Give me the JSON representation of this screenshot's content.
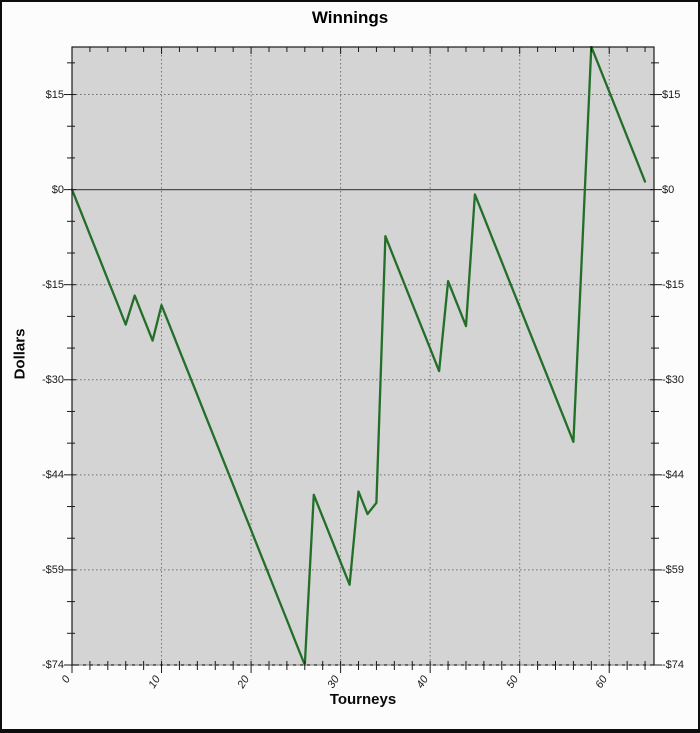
{
  "chart_data": {
    "type": "line",
    "title": "Winnings",
    "xlabel": "Tourneys",
    "ylabel": "Dollars",
    "legend": "none",
    "grid": {
      "vertical_at": [
        10,
        20,
        30,
        40,
        50,
        60
      ],
      "horizontal_at": [
        14.8,
        -14.8,
        -29.6,
        -44.4,
        -59.2,
        -74
      ],
      "zero_line": true
    },
    "xlim": [
      0,
      65
    ],
    "ylim": [
      -74,
      22.2
    ],
    "x_major_ticks": [
      0,
      10,
      20,
      30,
      40,
      50,
      60
    ],
    "x_minor_step": 2,
    "y_ticks": [
      {
        "value": 14.8,
        "label": "$15"
      },
      {
        "value": 0,
        "label": "$0"
      },
      {
        "value": -14.8,
        "label": "-$15"
      },
      {
        "value": -29.6,
        "label": "-$30"
      },
      {
        "value": -44.4,
        "label": "-$44"
      },
      {
        "value": -59.2,
        "label": "-$59"
      },
      {
        "value": -74,
        "label": "-$74"
      }
    ],
    "y_minor_step": 4.9333,
    "x": [
      0,
      1,
      2,
      3,
      4,
      5,
      6,
      7,
      8,
      9,
      10,
      11,
      12,
      13,
      14,
      15,
      16,
      17,
      18,
      19,
      20,
      21,
      22,
      23,
      24,
      25,
      26,
      27,
      28,
      29,
      30,
      31,
      32,
      33,
      34,
      35,
      36,
      37,
      38,
      39,
      40,
      41,
      42,
      43,
      44,
      45,
      46,
      47,
      48,
      49,
      50,
      51,
      52,
      53,
      54,
      55,
      56,
      57,
      58,
      59,
      60,
      61,
      62,
      63,
      64
    ],
    "values": [
      0,
      -3.5,
      -7,
      -10.5,
      -14,
      -17.5,
      -21,
      -16.5,
      -20,
      -23.5,
      -18,
      -21.5,
      -25,
      -28.5,
      -32,
      -35.5,
      -39,
      -42.5,
      -46,
      -49.5,
      -53,
      -56.5,
      -60,
      -63.5,
      -67,
      -70.5,
      -74,
      -47.5,
      -51,
      -54.5,
      -58,
      -61.5,
      -47,
      -50.5,
      -48.75,
      -7.25,
      -10.75,
      -14.25,
      -17.75,
      -21.25,
      -24.75,
      -28.25,
      -14.25,
      -17.75,
      -21.25,
      -0.75,
      -4.25,
      -7.75,
      -11.25,
      -14.75,
      -18.25,
      -21.75,
      -25.25,
      -28.75,
      -32.25,
      -35.75,
      -39.25,
      -8.5,
      22.25,
      18.75,
      15.25,
      11.75,
      8.25,
      4.75,
      1.25
    ],
    "colors": {
      "line": "#236e28",
      "plot_bg": "#d4d4d4",
      "grid": "#707070",
      "zero_line": "#4d4d4d",
      "spine": "#1a1a1a",
      "bottom_dash": "#a8a8a8",
      "text": "#1a1a1a"
    }
  }
}
